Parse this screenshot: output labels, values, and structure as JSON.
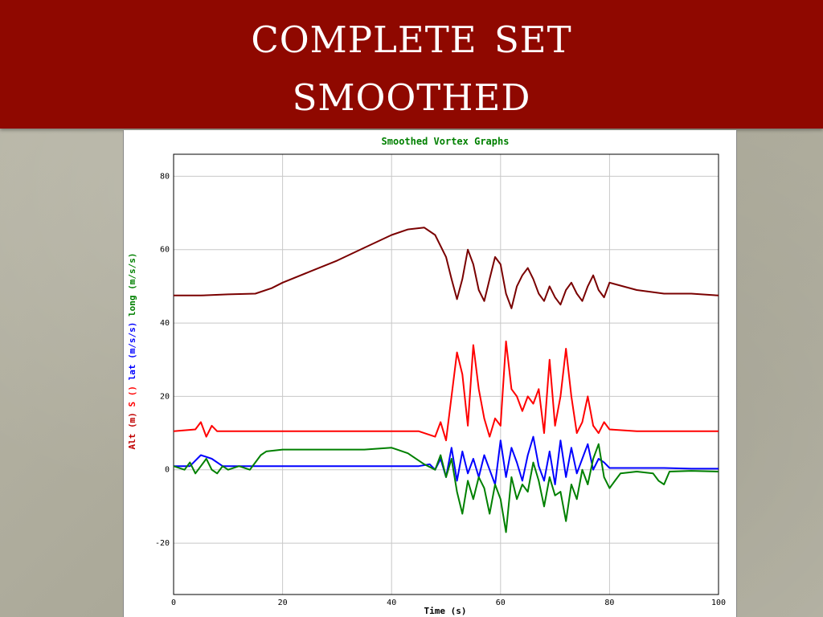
{
  "slide": {
    "title_lines": [
      "Complete Set",
      "Smoothed"
    ],
    "title_color": "#8f0800"
  },
  "chart_data": {
    "type": "line",
    "title": "Smoothed Vortex Graphs",
    "title_color": "#008000",
    "xlabel": "Time (s)",
    "ylabel_parts": [
      {
        "text": "Alt (m)",
        "color": "#c00000"
      },
      {
        "text": "S ()",
        "color": "#ff0000"
      },
      {
        "text": "lat (m/s/s)",
        "color": "#0000ff"
      },
      {
        "text": "long (m/s/s)",
        "color": "#008000"
      }
    ],
    "xlim": [
      0,
      100
    ],
    "ylim": [
      -34,
      86
    ],
    "x_ticks": [
      0,
      20,
      40,
      60,
      80,
      100
    ],
    "y_ticks": [
      -20,
      0,
      20,
      40,
      60,
      80
    ],
    "grid": true,
    "series": [
      {
        "color": "#7a0000",
        "points": [
          [
            0,
            47.5
          ],
          [
            5,
            47.5
          ],
          [
            10,
            47.8
          ],
          [
            15,
            48
          ],
          [
            18,
            49.5
          ],
          [
            20,
            51
          ],
          [
            25,
            54
          ],
          [
            30,
            57
          ],
          [
            35,
            60.5
          ],
          [
            40,
            64
          ],
          [
            43,
            65.5
          ],
          [
            46,
            66
          ],
          [
            48,
            64
          ],
          [
            50,
            58
          ],
          [
            51,
            52
          ],
          [
            52,
            46.5
          ],
          [
            53,
            52
          ],
          [
            54,
            60
          ],
          [
            55,
            56
          ],
          [
            56,
            49
          ],
          [
            57,
            46
          ],
          [
            58,
            52
          ],
          [
            59,
            58
          ],
          [
            60,
            56
          ],
          [
            61,
            48
          ],
          [
            62,
            44
          ],
          [
            63,
            50
          ],
          [
            64,
            53
          ],
          [
            65,
            55
          ],
          [
            66,
            52
          ],
          [
            67,
            48
          ],
          [
            68,
            46
          ],
          [
            69,
            50
          ],
          [
            70,
            47
          ],
          [
            71,
            45
          ],
          [
            72,
            49
          ],
          [
            73,
            51
          ],
          [
            74,
            48
          ],
          [
            75,
            46
          ],
          [
            76,
            50
          ],
          [
            77,
            53
          ],
          [
            78,
            49
          ],
          [
            79,
            47
          ],
          [
            80,
            51
          ],
          [
            85,
            49
          ],
          [
            90,
            48
          ],
          [
            95,
            48
          ],
          [
            100,
            47.5
          ]
        ]
      },
      {
        "color": "#ff0000",
        "points": [
          [
            0,
            10.5
          ],
          [
            4,
            11
          ],
          [
            5,
            13
          ],
          [
            6,
            9
          ],
          [
            7,
            12
          ],
          [
            8,
            10.5
          ],
          [
            15,
            10.5
          ],
          [
            30,
            10.5
          ],
          [
            45,
            10.5
          ],
          [
            48,
            9
          ],
          [
            49,
            13
          ],
          [
            50,
            8
          ],
          [
            51,
            20
          ],
          [
            52,
            32
          ],
          [
            53,
            26
          ],
          [
            54,
            12
          ],
          [
            55,
            34
          ],
          [
            56,
            22
          ],
          [
            57,
            14
          ],
          [
            58,
            9
          ],
          [
            59,
            14
          ],
          [
            60,
            12
          ],
          [
            61,
            35
          ],
          [
            62,
            22
          ],
          [
            63,
            20
          ],
          [
            64,
            16
          ],
          [
            65,
            20
          ],
          [
            66,
            18
          ],
          [
            67,
            22
          ],
          [
            68,
            10
          ],
          [
            69,
            30
          ],
          [
            70,
            12
          ],
          [
            71,
            20
          ],
          [
            72,
            33
          ],
          [
            73,
            20
          ],
          [
            74,
            10
          ],
          [
            75,
            13
          ],
          [
            76,
            20
          ],
          [
            77,
            12
          ],
          [
            78,
            10
          ],
          [
            79,
            13
          ],
          [
            80,
            11
          ],
          [
            85,
            10.5
          ],
          [
            90,
            10.5
          ],
          [
            95,
            10.5
          ],
          [
            100,
            10.5
          ]
        ]
      },
      {
        "color": "#0000ff",
        "points": [
          [
            0,
            1
          ],
          [
            3,
            1
          ],
          [
            5,
            4
          ],
          [
            7,
            3
          ],
          [
            9,
            1
          ],
          [
            12,
            1
          ],
          [
            15,
            1
          ],
          [
            20,
            1
          ],
          [
            30,
            1
          ],
          [
            40,
            1
          ],
          [
            45,
            1
          ],
          [
            47,
            1.5
          ],
          [
            48,
            0
          ],
          [
            49,
            3
          ],
          [
            50,
            -2
          ],
          [
            51,
            6
          ],
          [
            52,
            -3
          ],
          [
            53,
            5
          ],
          [
            54,
            -1
          ],
          [
            55,
            3
          ],
          [
            56,
            -2
          ],
          [
            57,
            4
          ],
          [
            58,
            0
          ],
          [
            59,
            -4
          ],
          [
            60,
            8
          ],
          [
            61,
            -2
          ],
          [
            62,
            6
          ],
          [
            63,
            2
          ],
          [
            64,
            -3
          ],
          [
            65,
            4
          ],
          [
            66,
            9
          ],
          [
            67,
            1
          ],
          [
            68,
            -3
          ],
          [
            69,
            5
          ],
          [
            70,
            -4
          ],
          [
            71,
            8
          ],
          [
            72,
            -2
          ],
          [
            73,
            6
          ],
          [
            74,
            -1
          ],
          [
            75,
            3
          ],
          [
            76,
            7
          ],
          [
            77,
            0
          ],
          [
            78,
            3
          ],
          [
            79,
            2
          ],
          [
            80,
            0.5
          ],
          [
            85,
            0.5
          ],
          [
            90,
            0.5
          ],
          [
            95,
            0.3
          ],
          [
            100,
            0.3
          ]
        ]
      },
      {
        "color": "#008000",
        "points": [
          [
            0,
            1
          ],
          [
            2,
            0
          ],
          [
            3,
            2
          ],
          [
            4,
            -1
          ],
          [
            5,
            1
          ],
          [
            6,
            3
          ],
          [
            7,
            0
          ],
          [
            8,
            -1
          ],
          [
            9,
            1
          ],
          [
            10,
            0
          ],
          [
            12,
            1
          ],
          [
            14,
            0
          ],
          [
            15,
            2
          ],
          [
            16,
            4
          ],
          [
            17,
            5
          ],
          [
            20,
            5.5
          ],
          [
            25,
            5.5
          ],
          [
            30,
            5.5
          ],
          [
            35,
            5.5
          ],
          [
            40,
            6
          ],
          [
            41,
            5.5
          ],
          [
            43,
            4.5
          ],
          [
            46,
            1.5
          ],
          [
            48,
            0
          ],
          [
            49,
            4
          ],
          [
            50,
            -2
          ],
          [
            51,
            3
          ],
          [
            52,
            -6
          ],
          [
            53,
            -12
          ],
          [
            54,
            -3
          ],
          [
            55,
            -8
          ],
          [
            56,
            -2
          ],
          [
            57,
            -5
          ],
          [
            58,
            -12
          ],
          [
            59,
            -4
          ],
          [
            60,
            -8
          ],
          [
            61,
            -17
          ],
          [
            62,
            -2
          ],
          [
            63,
            -8
          ],
          [
            64,
            -4
          ],
          [
            65,
            -6
          ],
          [
            66,
            2
          ],
          [
            67,
            -3
          ],
          [
            68,
            -10
          ],
          [
            69,
            -2
          ],
          [
            70,
            -7
          ],
          [
            71,
            -6
          ],
          [
            72,
            -14
          ],
          [
            73,
            -4
          ],
          [
            74,
            -8
          ],
          [
            75,
            0
          ],
          [
            76,
            -4
          ],
          [
            77,
            3
          ],
          [
            78,
            7
          ],
          [
            79,
            -2
          ],
          [
            80,
            -5
          ],
          [
            81,
            -3
          ],
          [
            82,
            -1
          ],
          [
            85,
            -0.5
          ],
          [
            88,
            -1
          ],
          [
            89,
            -3
          ],
          [
            90,
            -4
          ],
          [
            91,
            -0.5
          ],
          [
            95,
            -0.3
          ],
          [
            100,
            -0.5
          ]
        ]
      }
    ]
  }
}
